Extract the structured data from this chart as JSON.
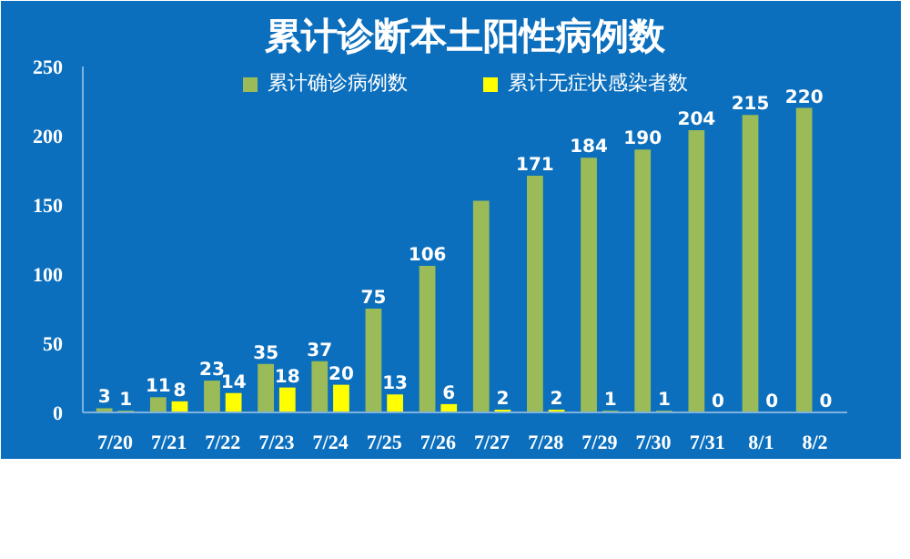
{
  "chart_data": {
    "type": "bar",
    "title": "累计诊断本土阳性病例数",
    "categories": [
      "7/20",
      "7/21",
      "7/22",
      "7/23",
      "7/24",
      "7/25",
      "7/26",
      "7/27",
      "7/28",
      "7/29",
      "7/30",
      "7/31",
      "8/1",
      "8/2"
    ],
    "series": [
      {
        "name": "累计确诊病例数",
        "color": "#9bbb59",
        "values": [
          3,
          11,
          23,
          35,
          37,
          75,
          106,
          153,
          171,
          184,
          190,
          204,
          215,
          220
        ],
        "value_labels": [
          "3",
          "11",
          "23",
          "35",
          "37",
          "75",
          "106",
          null,
          "171",
          "184",
          "190",
          "204",
          "215",
          "220"
        ]
      },
      {
        "name": "累计无症状感染者数",
        "color": "#ffff00",
        "values": [
          1,
          8,
          14,
          18,
          20,
          13,
          6,
          2,
          2,
          1,
          1,
          0,
          0,
          0
        ],
        "value_labels": [
          "1",
          "8",
          "14",
          "18",
          "20",
          "13",
          "6",
          "2",
          "2",
          "1",
          "1",
          "0",
          "0",
          "0"
        ]
      }
    ],
    "ylim": [
      0,
      250
    ],
    "yticks": [
      0,
      50,
      100,
      150,
      200,
      250
    ],
    "grid": false,
    "legend": "top"
  }
}
